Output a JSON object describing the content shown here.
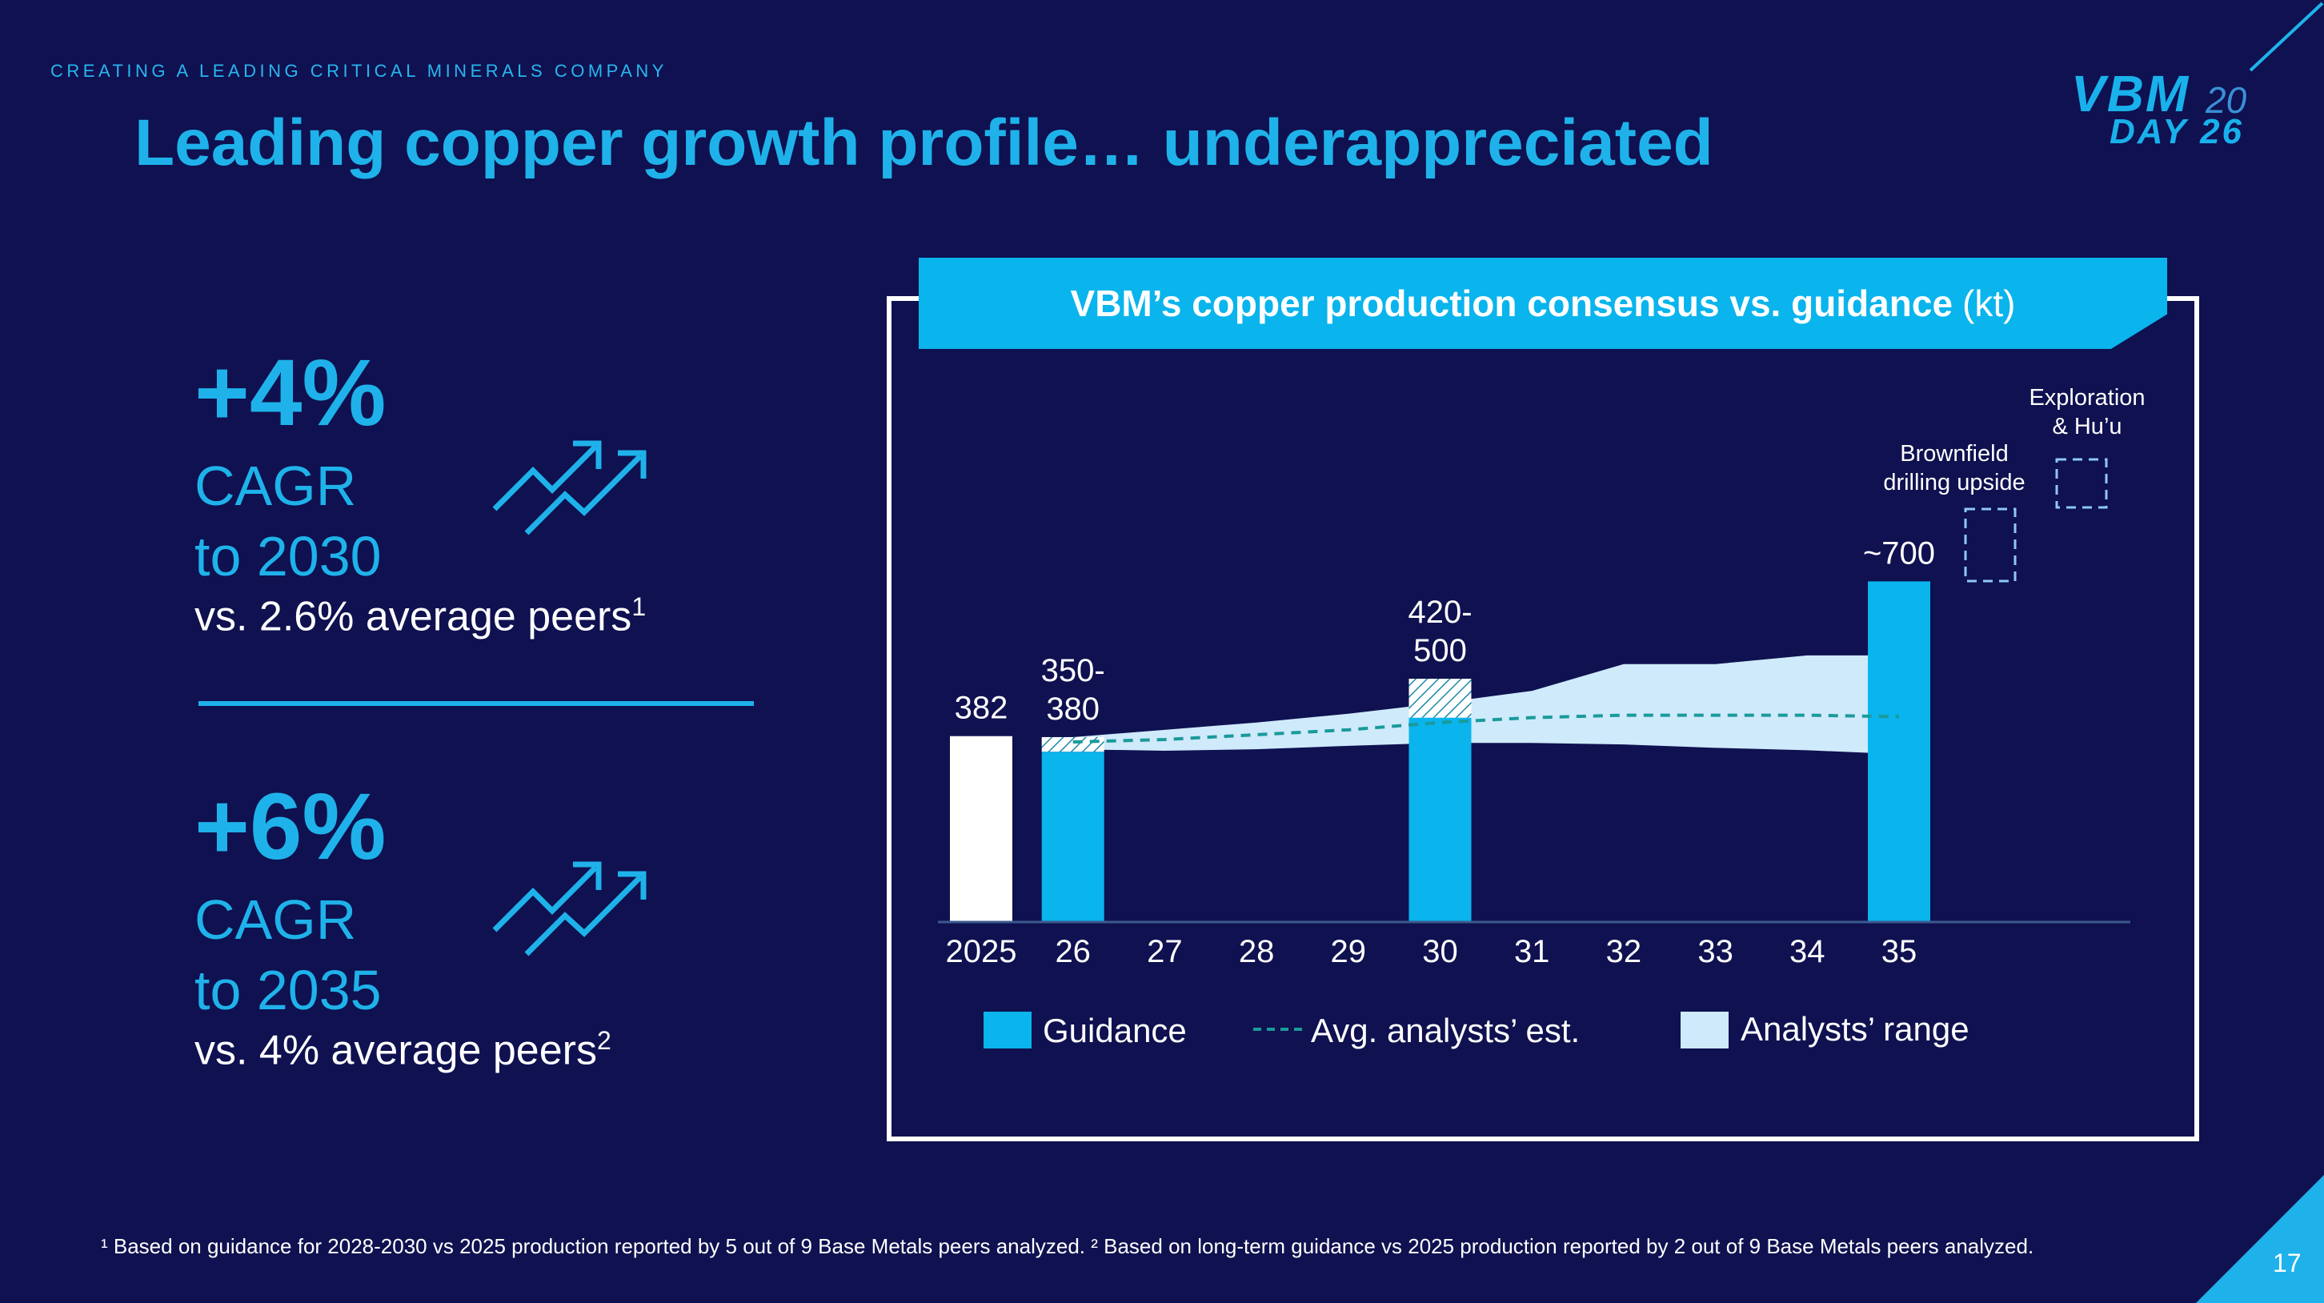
{
  "header": {
    "kicker": "CREATING A LEADING CRITICAL MINERALS COMPANY",
    "title": "Leading copper growth profile… underappreciated"
  },
  "logo": {
    "vbm": "VBM",
    "year_top": "20",
    "day": "DAY 26"
  },
  "stats": [
    {
      "value": "+4%",
      "line1": "CAGR",
      "line2": "to 2030",
      "compare": "vs. 2.6% average peers",
      "sup": "1",
      "icon": "trend-up-arrows-icon"
    },
    {
      "value": "+6%",
      "line1": "CAGR",
      "line2": "to 2035",
      "compare": "vs. 4% average peers",
      "sup": "2",
      "icon": "trend-up-arrows-icon"
    }
  ],
  "chart_header": {
    "title": "VBM’s copper production consensus vs. guidance",
    "unit": "(kt)"
  },
  "chart_data": {
    "type": "bar",
    "title": "VBM’s copper production consensus vs. guidance (kt)",
    "categories": [
      "2025",
      "26",
      "27",
      "28",
      "29",
      "30",
      "31",
      "32",
      "33",
      "34",
      "35"
    ],
    "ylim": [
      0,
      760
    ],
    "actual": {
      "category": "2025",
      "value": 382,
      "label": "382"
    },
    "guidance": [
      {
        "category": "26",
        "low": 350,
        "high": 380,
        "label": "350-\n380"
      },
      {
        "category": "30",
        "low": 420,
        "high": 500,
        "label": "420-\n500"
      },
      {
        "category": "35",
        "value": 700,
        "label": "~700"
      }
    ],
    "avg_analysts_est": [
      {
        "x": "26",
        "y": 370
      },
      {
        "x": "27",
        "y": 375
      },
      {
        "x": "28",
        "y": 385
      },
      {
        "x": "29",
        "y": 395
      },
      {
        "x": "30",
        "y": 410
      },
      {
        "x": "31",
        "y": 420
      },
      {
        "x": "32",
        "y": 425
      },
      {
        "x": "33",
        "y": 425
      },
      {
        "x": "34",
        "y": 425
      },
      {
        "x": "35",
        "y": 422
      }
    ],
    "analysts_range": [
      {
        "x": "26",
        "low": 355,
        "high": 380
      },
      {
        "x": "27",
        "low": 352,
        "high": 395
      },
      {
        "x": "28",
        "low": 355,
        "high": 410
      },
      {
        "x": "29",
        "low": 362,
        "high": 428
      },
      {
        "x": "30",
        "low": 368,
        "high": 450
      },
      {
        "x": "31",
        "low": 368,
        "high": 475
      },
      {
        "x": "32",
        "low": 365,
        "high": 530
      },
      {
        "x": "33",
        "low": 358,
        "high": 530
      },
      {
        "x": "34",
        "low": 353,
        "high": 548
      },
      {
        "x": "35",
        "low": 345,
        "high": 548
      }
    ],
    "upside": [
      {
        "name": "Brownfield drilling upside",
        "low": 700,
        "high": 850
      },
      {
        "name": "Exploration & Hu’u",
        "low": 850,
        "high": 960
      }
    ],
    "legend": [
      {
        "name": "Guidance",
        "color": "#0ab4ec",
        "style": "box"
      },
      {
        "name": "Avg. analysts’ est.",
        "color": "#1a9a9a",
        "style": "dashed"
      },
      {
        "name": "Analysts’ range",
        "color": "#cfeafb",
        "style": "box"
      }
    ],
    "legend_position": "bottom"
  },
  "annotations": {
    "brownfield_line1": "Brownfield",
    "brownfield_line2": "drilling upside",
    "exploration_line1": "Exploration",
    "exploration_line2": "& Hu’u"
  },
  "colors": {
    "background": "#0f1150",
    "accent": "#1fb2ea",
    "guidance": "#0ab4ec",
    "range": "#cfeafb",
    "avg_line": "#1a9a9a",
    "actual": "#ffffff"
  },
  "footnote": "¹ Based on guidance for 2028-2030 vs 2025 production reported by 5 out of 9 Base Metals peers analyzed.  ² Based on long-term guidance vs 2025 production reported by 2 out of 9 Base Metals peers analyzed.",
  "page_number": "17"
}
